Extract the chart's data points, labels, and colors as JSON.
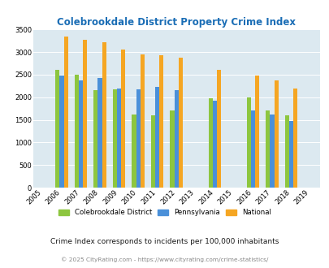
{
  "title": "Colebrookdale District Property Crime Index",
  "years": [
    2005,
    2006,
    2007,
    2008,
    2009,
    2010,
    2011,
    2012,
    2013,
    2014,
    2015,
    2016,
    2017,
    2018,
    2019
  ],
  "data_years": [
    2006,
    2007,
    2008,
    2009,
    2010,
    2011,
    2012,
    2014,
    2016,
    2017,
    2018
  ],
  "colebrookdale": [
    2600,
    2500,
    2150,
    2175,
    1625,
    1600,
    1700,
    1975,
    2000,
    1700,
    1600
  ],
  "pennsylvania": [
    2475,
    2375,
    2425,
    2200,
    2175,
    2225,
    2150,
    1925,
    1700,
    1625,
    1475
  ],
  "national": [
    3350,
    3275,
    3225,
    3050,
    2950,
    2925,
    2875,
    2600,
    2475,
    2375,
    2200
  ],
  "color_cole": "#8dc63f",
  "color_penn": "#4a90d9",
  "color_natl": "#f5a623",
  "bg_color": "#dce9f0",
  "title_color": "#1a6db5",
  "ylim": [
    0,
    3500
  ],
  "yticks": [
    0,
    500,
    1000,
    1500,
    2000,
    2500,
    3000,
    3500
  ],
  "subtitle": "Crime Index corresponds to incidents per 100,000 inhabitants",
  "footer": "© 2025 CityRating.com - https://www.cityrating.com/crime-statistics/",
  "bar_width": 0.22,
  "legend_labels": [
    "Colebrookdale District",
    "Pennsylvania",
    "National"
  ],
  "subtitle_color": "#1a1a1a",
  "footer_color": "#888888"
}
